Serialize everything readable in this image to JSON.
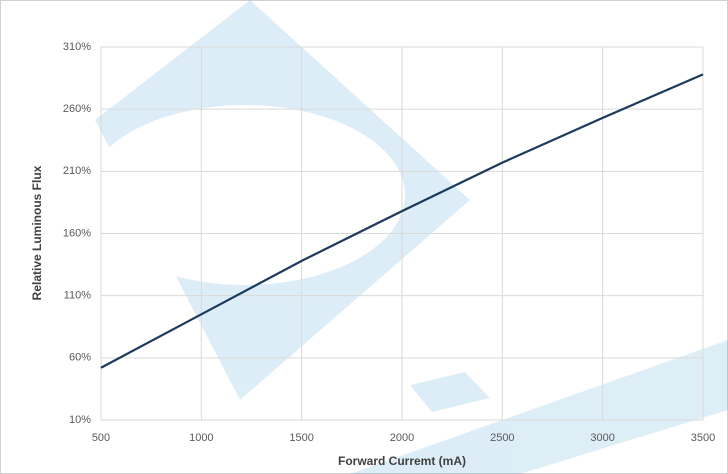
{
  "chart_data": {
    "type": "line",
    "x_label": "Forward Curremt (mA)",
    "y_label": "Relative Luminous Flux",
    "x": [
      500,
      1000,
      1500,
      2000,
      2500,
      3000,
      3500
    ],
    "series": [
      {
        "color": "#1b3a5c",
        "values": [
          52,
          95,
          138,
          178,
          217,
          253,
          288
        ]
      }
    ],
    "xlim": [
      500,
      3500
    ],
    "xticks": [
      500,
      1000,
      1500,
      2000,
      2500,
      3000,
      3500
    ],
    "ylim": [
      10,
      310
    ],
    "yticks": [
      {
        "value": 10,
        "label": "10%"
      },
      {
        "value": 60,
        "label": "60%"
      },
      {
        "value": 110,
        "label": "110%"
      },
      {
        "value": 160,
        "label": "160%"
      },
      {
        "value": 210,
        "label": "210%"
      },
      {
        "value": 260,
        "label": "260%"
      },
      {
        "value": 310,
        "label": "310%"
      }
    ],
    "grid": true
  }
}
